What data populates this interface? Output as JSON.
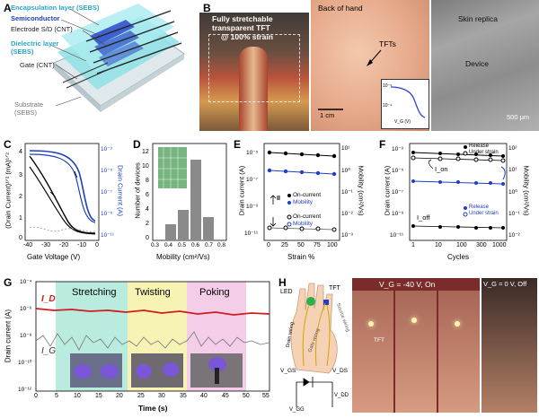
{
  "panelA": {
    "letter": "A",
    "layers": [
      {
        "label": "Encapsulation layer (SEBS)",
        "color": "#2aa6c9"
      },
      {
        "label": "Semiconductor",
        "color": "#1f3fbf"
      },
      {
        "label": "Electrode S/D (CNT)",
        "color": "#222222"
      },
      {
        "label": "Dielectric layer",
        "color": "#2aa6c9"
      },
      {
        "label": "(SEBS)",
        "color": "#2aa6c9"
      },
      {
        "label": "Gate (CNT)",
        "color": "#222222"
      },
      {
        "label": "Substrate",
        "color": "#777777"
      },
      {
        "label": "(SEBS)",
        "color": "#777777"
      }
    ]
  },
  "panelB": {
    "letter": "B",
    "photo1_caption_line1": "Fully stretchable",
    "photo1_caption_line2": "transparent TFT",
    "photo1_caption_line3": "@ 100% strain",
    "photo2_title": "Back of hand",
    "photo2_label": "TFTs",
    "photo2_scale": "1 cm",
    "inset": {
      "ylabel": "I_D",
      "xlabel": "V_G (V)",
      "yticks": [
        "10⁻⁵",
        "10⁻⁹"
      ],
      "xticks": [
        "-40",
        "-20",
        "0"
      ]
    },
    "photo3_label1": "Skin replica",
    "photo3_label2": "Device",
    "photo3_scale": "500 μm"
  },
  "panelC": {
    "letter": "C",
    "ylabel_left": "(Drain Current)¹ᐟ² (mA)¹ᐟ²",
    "ylabel_right": "Drain Current (A)",
    "xlabel": "Gate Voltage (V)",
    "left_ticks": [
      "4",
      "3",
      "2",
      "1",
      "0"
    ],
    "right_ticks": [
      "10⁻³",
      "10⁻⁵",
      "10⁻⁷",
      "10⁻⁹",
      "10⁻¹¹"
    ],
    "xticks": [
      "-40",
      "-30",
      "-20",
      "-10",
      "0"
    ]
  },
  "panelD": {
    "letter": "D",
    "ylabel": "Number of devices",
    "xlabel": "Mobility (cm²/Vs)",
    "yticks": [
      "12",
      "10",
      "8",
      "6",
      "4",
      "2",
      "0"
    ],
    "xticks": [
      "0.3",
      "0.4",
      "0.5",
      "0.6",
      "0.7",
      "0.8"
    ]
  },
  "panelE": {
    "letter": "E",
    "ylabel_left": "Drain current (A)",
    "ylabel_right": "Mobility (cm²/Vs)",
    "xlabel": "Strain %",
    "left_ticks": [
      "10⁻⁵",
      "10⁻⁷",
      "10⁻⁹",
      "10⁻¹¹"
    ],
    "right_ticks": [
      "10¹",
      "10⁰",
      "10⁻¹",
      "10⁻²",
      "10⁻³"
    ],
    "xticks": [
      "0",
      "25",
      "50",
      "75",
      "100"
    ],
    "legend_top": [
      "On-current",
      "Mobility"
    ],
    "legend_bottom": [
      "On-current",
      "Mobility"
    ],
    "arrow_label": "II"
  },
  "panelF": {
    "letter": "F",
    "ylabel_left": "Drain current (A)",
    "ylabel_right": "Mobility (cm²/Vs)",
    "xlabel": "Cycles",
    "left_ticks": [
      "10⁻³",
      "10⁻⁵",
      "10⁻⁷",
      "10⁻⁹",
      "10⁻¹¹"
    ],
    "right_ticks": [
      "10²",
      "10¹",
      "10⁰",
      "10⁻¹",
      "10⁻²"
    ],
    "xticks": [
      "1",
      "10",
      "100",
      "300",
      "1000"
    ],
    "legend_top": [
      "Release",
      "Under strain"
    ],
    "legend_mid": [
      "Release",
      "Under strain"
    ],
    "label_on": "I_on",
    "label_off": "I_off"
  },
  "panelG": {
    "letter": "G",
    "ylabel": "Drain current (A)",
    "xlabel": "Time (s)",
    "yticks": [
      "10⁻⁴",
      "10⁻⁶",
      "10⁻⁸",
      "10⁻¹⁰",
      "10⁻¹²"
    ],
    "xticks": [
      "0",
      "5",
      "10",
      "15",
      "20",
      "25",
      "30",
      "35",
      "40",
      "45",
      "50",
      "55"
    ],
    "label_id": "I_D",
    "label_ig": "I_G",
    "regions": [
      {
        "label": "Stretching",
        "color": "#b9ecdf"
      },
      {
        "label": "Twisting",
        "color": "#f7f3b5"
      },
      {
        "label": "Poking",
        "color": "#f4cde8"
      }
    ]
  },
  "panelH": {
    "letter": "H",
    "labels": [
      "LED",
      "TFT",
      "Drain wiring",
      "Gate wiring",
      "Source wiring",
      "V_GS",
      "V_DS",
      "V_DD",
      "V_GG"
    ],
    "photo_on_title": "V_G = -40 V, On",
    "photo_off_title": "V_G = 0 V, Off",
    "photo_tft_label": "TFT"
  }
}
